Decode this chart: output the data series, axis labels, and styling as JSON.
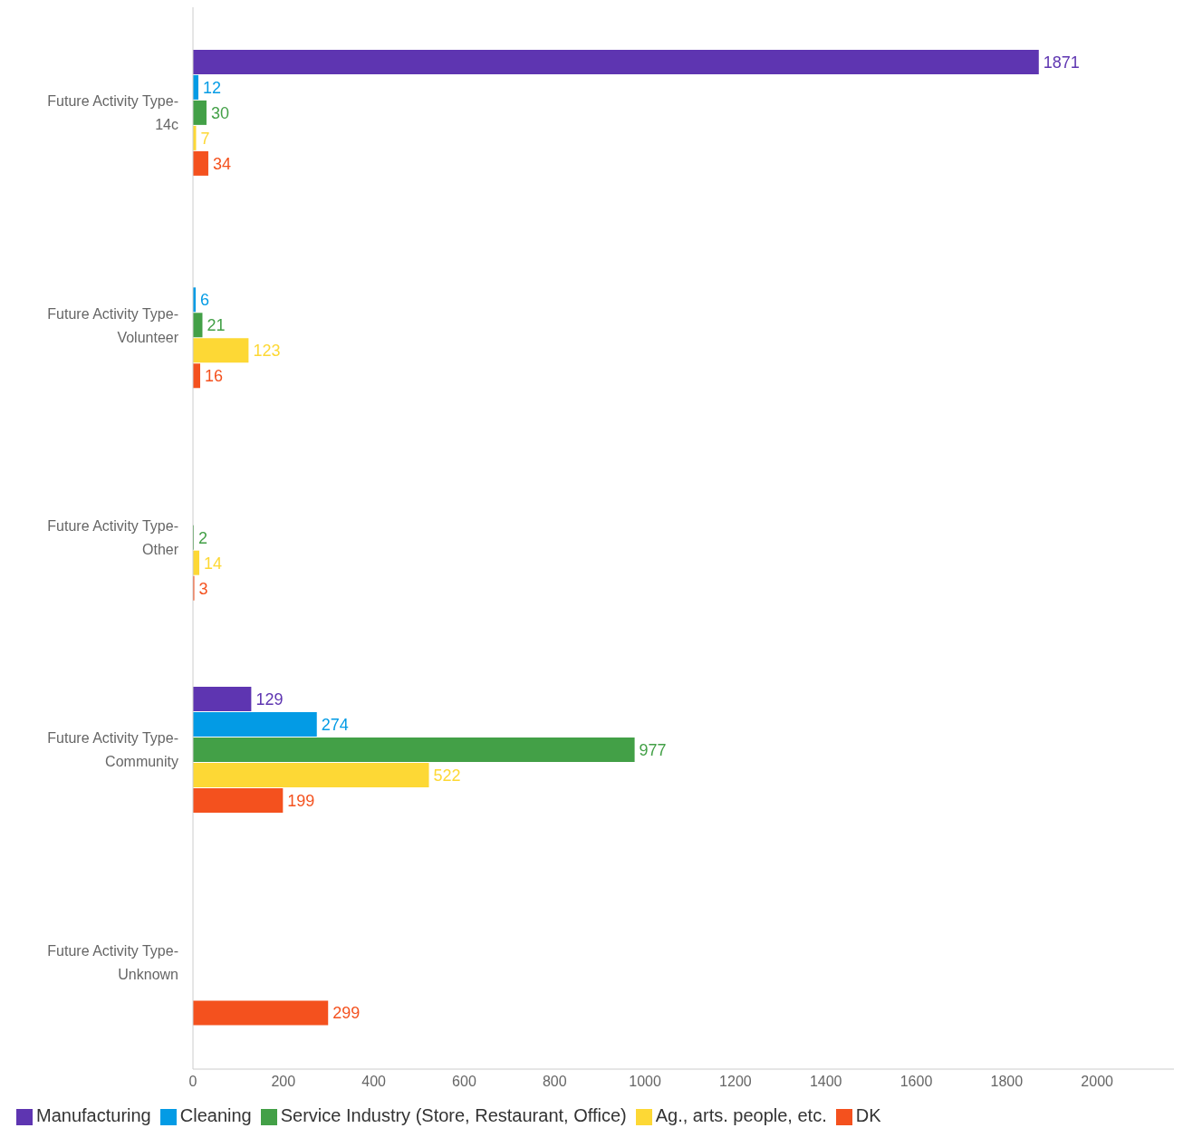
{
  "chart_data": {
    "type": "bar",
    "orientation": "horizontal",
    "categories": [
      "Future Activity Type-14c",
      "Future Activity Type-Volunteer",
      "Future Activity Type-Other",
      "Future Activity Type-Community",
      "Future Activity Type-Unknown"
    ],
    "series": [
      {
        "name": "Manufacturing",
        "color": "#5e35b1",
        "values": [
          1871,
          null,
          null,
          129,
          null
        ]
      },
      {
        "name": "Cleaning",
        "color": "#039be5",
        "values": [
          12,
          6,
          null,
          274,
          null
        ]
      },
      {
        "name": "Service Industry (Store, Restaurant, Office)",
        "color": "#43a047",
        "values": [
          30,
          21,
          2,
          977,
          null
        ]
      },
      {
        "name": "Ag., arts. people, etc.",
        "color": "#fdd835",
        "values": [
          7,
          123,
          14,
          522,
          null
        ]
      },
      {
        "name": "DK",
        "color": "#f4511e",
        "values": [
          34,
          16,
          3,
          199,
          299
        ]
      }
    ],
    "xlim": [
      0,
      2170
    ],
    "xticks": [
      0,
      200,
      400,
      600,
      800,
      1000,
      1200,
      1400,
      1600,
      1800,
      2000
    ],
    "data_labels": true,
    "grid": false,
    "legend": "bottom"
  }
}
